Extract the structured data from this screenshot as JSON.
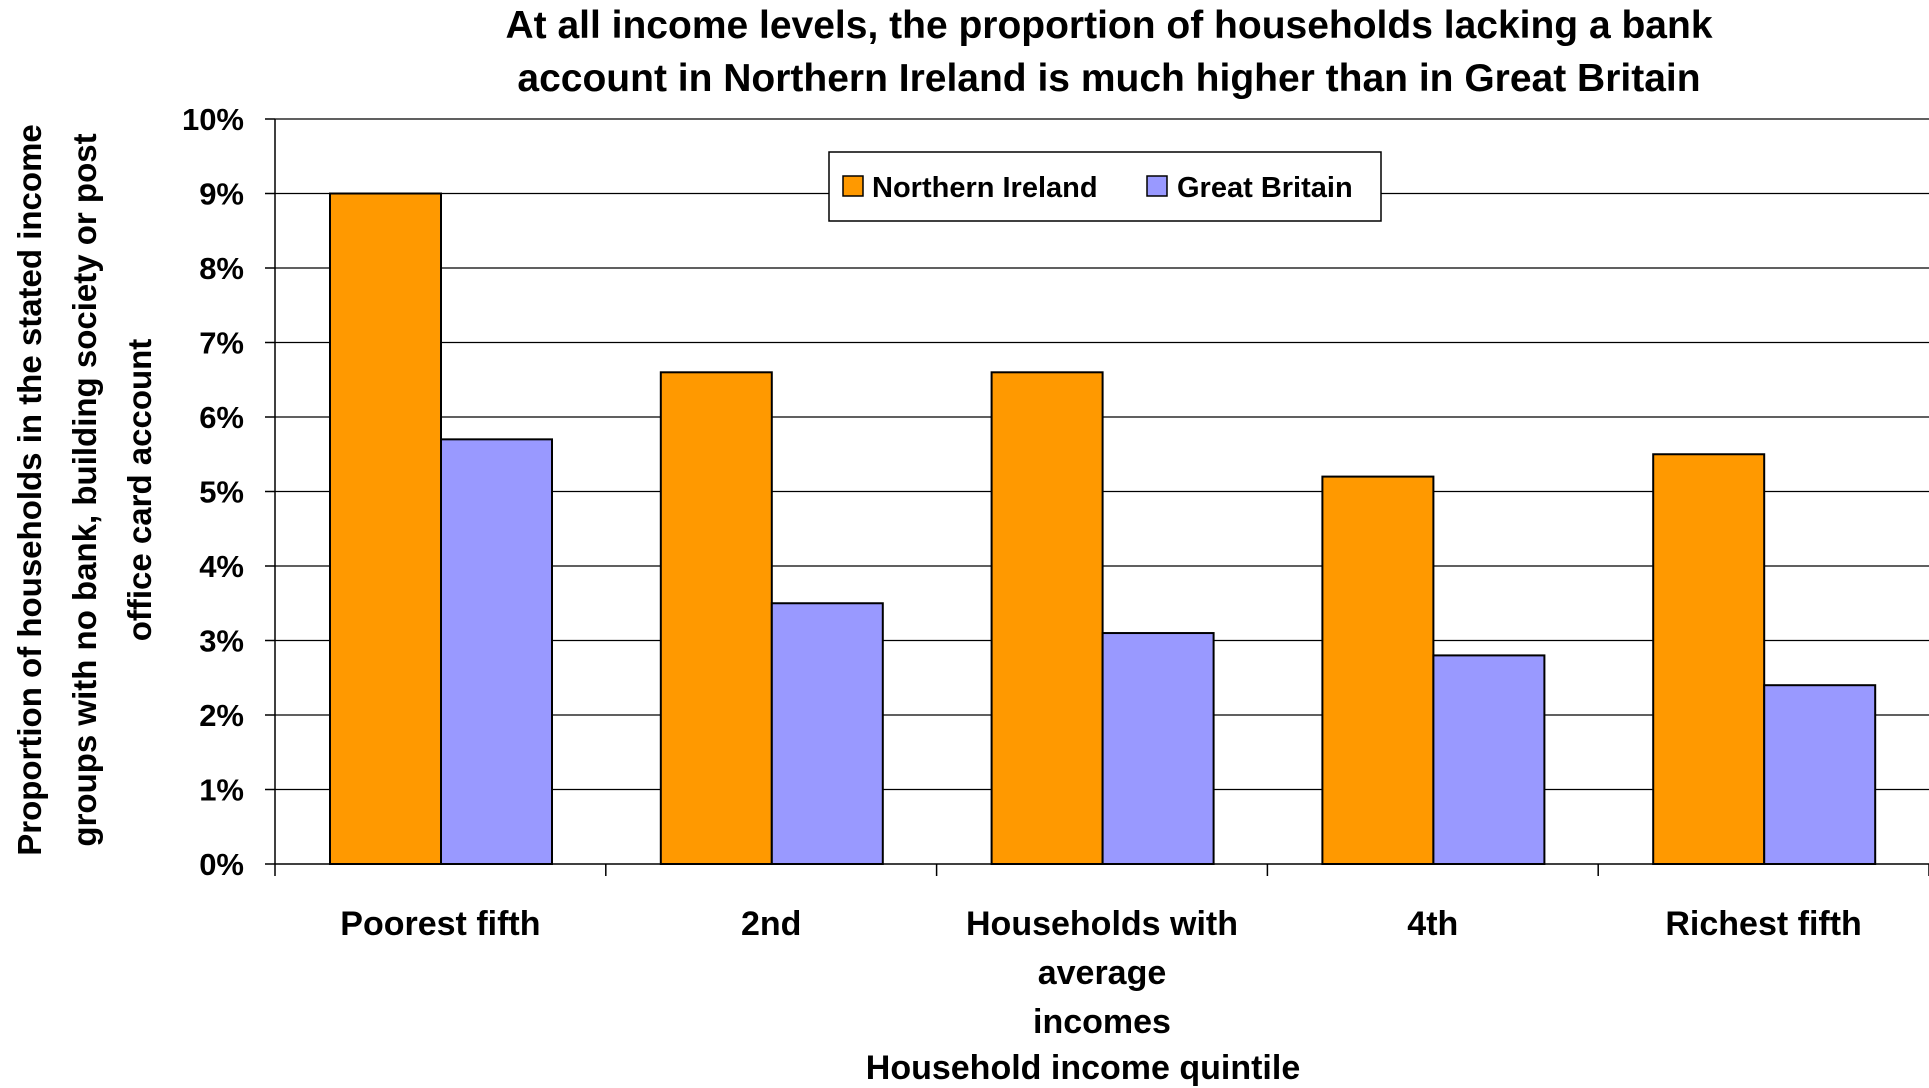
{
  "chart_data": {
    "type": "bar",
    "title": [
      "At all income levels, the proportion of households lacking a bank",
      "account in Northern Ireland is much higher than in Great Britain"
    ],
    "ylabel": [
      "Proportion of households in the stated income",
      "groups with no bank, building society or post",
      "office card account"
    ],
    "xlabel": "Household income quintile",
    "categories": [
      [
        "Poorest fifth"
      ],
      [
        "2nd"
      ],
      [
        "Households with",
        "average",
        "incomes"
      ],
      [
        "4th"
      ],
      [
        "Richest fifth"
      ]
    ],
    "series": [
      {
        "name": "Northern Ireland",
        "color": "#ff9900",
        "values": [
          0.09,
          0.066,
          0.066,
          0.052,
          0.055
        ]
      },
      {
        "name": "Great Britain",
        "color": "#9999ff",
        "values": [
          0.057,
          0.035,
          0.031,
          0.028,
          0.024
        ]
      }
    ],
    "ylim": [
      0,
      0.1
    ],
    "yticks": [
      "0%",
      "1%",
      "2%",
      "3%",
      "4%",
      "5%",
      "6%",
      "7%",
      "8%",
      "9%",
      "10%"
    ],
    "grid": true,
    "legend_position": "top-center"
  }
}
